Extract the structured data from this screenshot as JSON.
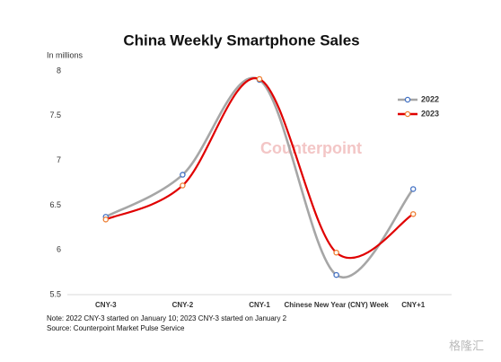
{
  "chart_data": {
    "type": "line",
    "title": "China Weekly Smartphone Sales",
    "y_label": "In millions",
    "categories": [
      "CNY-3",
      "CNY-2",
      "CNY-1",
      "Chinese New Year (CNY) Week",
      "CNY+1"
    ],
    "series": [
      {
        "name": "2022",
        "color": "#a6a6a6",
        "marker_color": "#4472c4",
        "values": [
          6.37,
          6.84,
          7.9,
          5.72,
          6.68
        ]
      },
      {
        "name": "2023",
        "color": "#e00000",
        "marker_color": "#ed7d31",
        "values": [
          6.34,
          6.72,
          7.91,
          5.97,
          6.4
        ]
      }
    ],
    "ylim": [
      5.5,
      8
    ],
    "yticks": [
      5.5,
      6,
      6.5,
      7,
      7.5,
      8
    ],
    "grid": false,
    "smooth": true,
    "legend": "right",
    "notes": [
      "Note: 2022 CNY-3 started on January 10; 2023 CNY-3 started on January 2",
      "Source: Counterpoint Market Pulse Service"
    ],
    "watermark": "Counterpoint",
    "logo": "格隆汇"
  }
}
